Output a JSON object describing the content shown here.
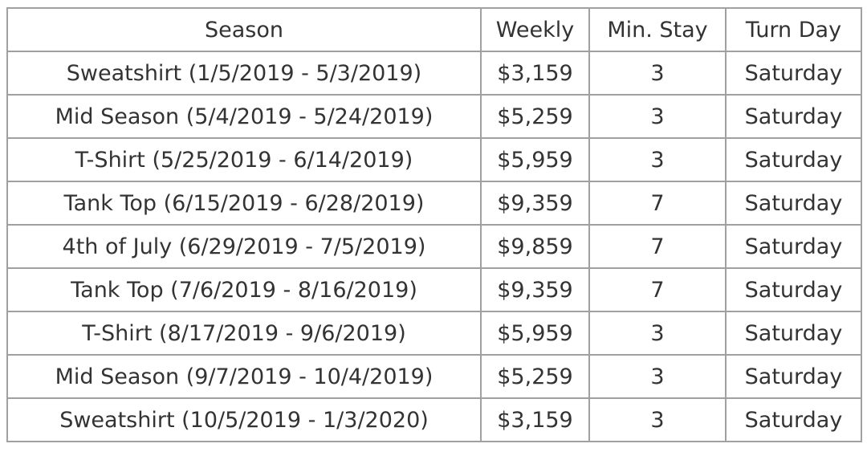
{
  "table": {
    "headers": [
      "Season",
      "Weekly",
      "Min. Stay",
      "Turn Day"
    ],
    "rows": [
      [
        "Sweatshirt (1/5/2019 - 5/3/2019)",
        "$3,159",
        "3",
        "Saturday"
      ],
      [
        "Mid Season (5/4/2019 - 5/24/2019)",
        "$5,259",
        "3",
        "Saturday"
      ],
      [
        "T-Shirt (5/25/2019 - 6/14/2019)",
        "$5,959",
        "3",
        "Saturday"
      ],
      [
        "Tank Top (6/15/2019 - 6/28/2019)",
        "$9,359",
        "7",
        "Saturday"
      ],
      [
        "4th of July (6/29/2019 - 7/5/2019)",
        "$9,859",
        "7",
        "Saturday"
      ],
      [
        "Tank Top (7/6/2019 - 8/16/2019)",
        "$9,359",
        "7",
        "Saturday"
      ],
      [
        "T-Shirt (8/17/2019 - 9/6/2019)",
        "$5,959",
        "3",
        "Saturday"
      ],
      [
        "Mid Season (9/7/2019 - 10/4/2019)",
        "$5,259",
        "3",
        "Saturday"
      ],
      [
        "Sweatshirt (10/5/2019 - 1/3/2020)",
        "$3,159",
        "3",
        "Saturday"
      ]
    ]
  }
}
